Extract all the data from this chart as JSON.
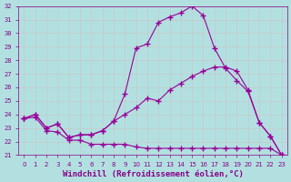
{
  "background_color": "#b2e0e0",
  "grid_color": "#c8c8c8",
  "line_color": "#990099",
  "xlabel": "Windchill (Refroidissement éolien,°C)",
  "ylim": [
    21,
    32
  ],
  "xlim": [
    -0.5,
    23.5
  ],
  "yticks": [
    21,
    22,
    23,
    24,
    25,
    26,
    27,
    28,
    29,
    30,
    31,
    32
  ],
  "xticks": [
    0,
    1,
    2,
    3,
    4,
    5,
    6,
    7,
    8,
    9,
    10,
    11,
    12,
    13,
    14,
    15,
    16,
    17,
    18,
    19,
    20,
    21,
    22,
    23
  ],
  "line1_x": [
    0,
    1,
    2,
    3,
    4,
    5,
    6,
    7,
    8,
    9,
    10,
    11,
    12,
    13,
    14,
    15,
    16,
    17,
    18,
    19,
    20,
    21,
    22,
    23
  ],
  "line1_y": [
    23.7,
    23.8,
    22.8,
    22.7,
    22.1,
    22.1,
    21.8,
    21.8,
    21.8,
    21.8,
    21.6,
    21.5,
    21.5,
    21.5,
    21.5,
    21.5,
    21.5,
    21.5,
    21.5,
    21.5,
    21.5,
    21.5,
    21.5,
    21.0
  ],
  "line2_x": [
    0,
    1,
    2,
    3,
    4,
    5,
    6,
    7,
    8,
    9,
    10,
    11,
    12,
    13,
    14,
    15,
    16,
    17,
    18,
    19,
    20,
    21,
    22,
    23
  ],
  "line2_y": [
    23.7,
    24.0,
    23.0,
    23.3,
    22.3,
    22.5,
    22.5,
    22.8,
    23.5,
    24.0,
    24.5,
    25.2,
    25.0,
    25.8,
    26.3,
    26.8,
    27.2,
    27.5,
    27.5,
    27.2,
    25.8,
    23.4,
    22.4,
    21.0
  ],
  "line3_x": [
    0,
    1,
    2,
    3,
    4,
    5,
    6,
    7,
    8,
    9,
    10,
    11,
    12,
    13,
    14,
    15,
    16,
    17,
    18,
    19,
    20,
    21,
    22,
    23
  ],
  "line3_y": [
    23.7,
    24.0,
    23.0,
    23.3,
    22.3,
    22.5,
    22.5,
    22.8,
    23.5,
    25.5,
    28.9,
    29.2,
    30.8,
    31.2,
    31.5,
    32.0,
    31.3,
    28.9,
    27.4,
    26.5,
    25.7,
    23.4,
    22.4,
    21.0
  ],
  "marker": "+",
  "markersize": 4,
  "linewidth": 0.8,
  "tick_fontsize": 5,
  "xlabel_fontsize": 6.5,
  "tick_color": "#880088",
  "xlabel_color": "#880088",
  "spine_color": "#880088"
}
